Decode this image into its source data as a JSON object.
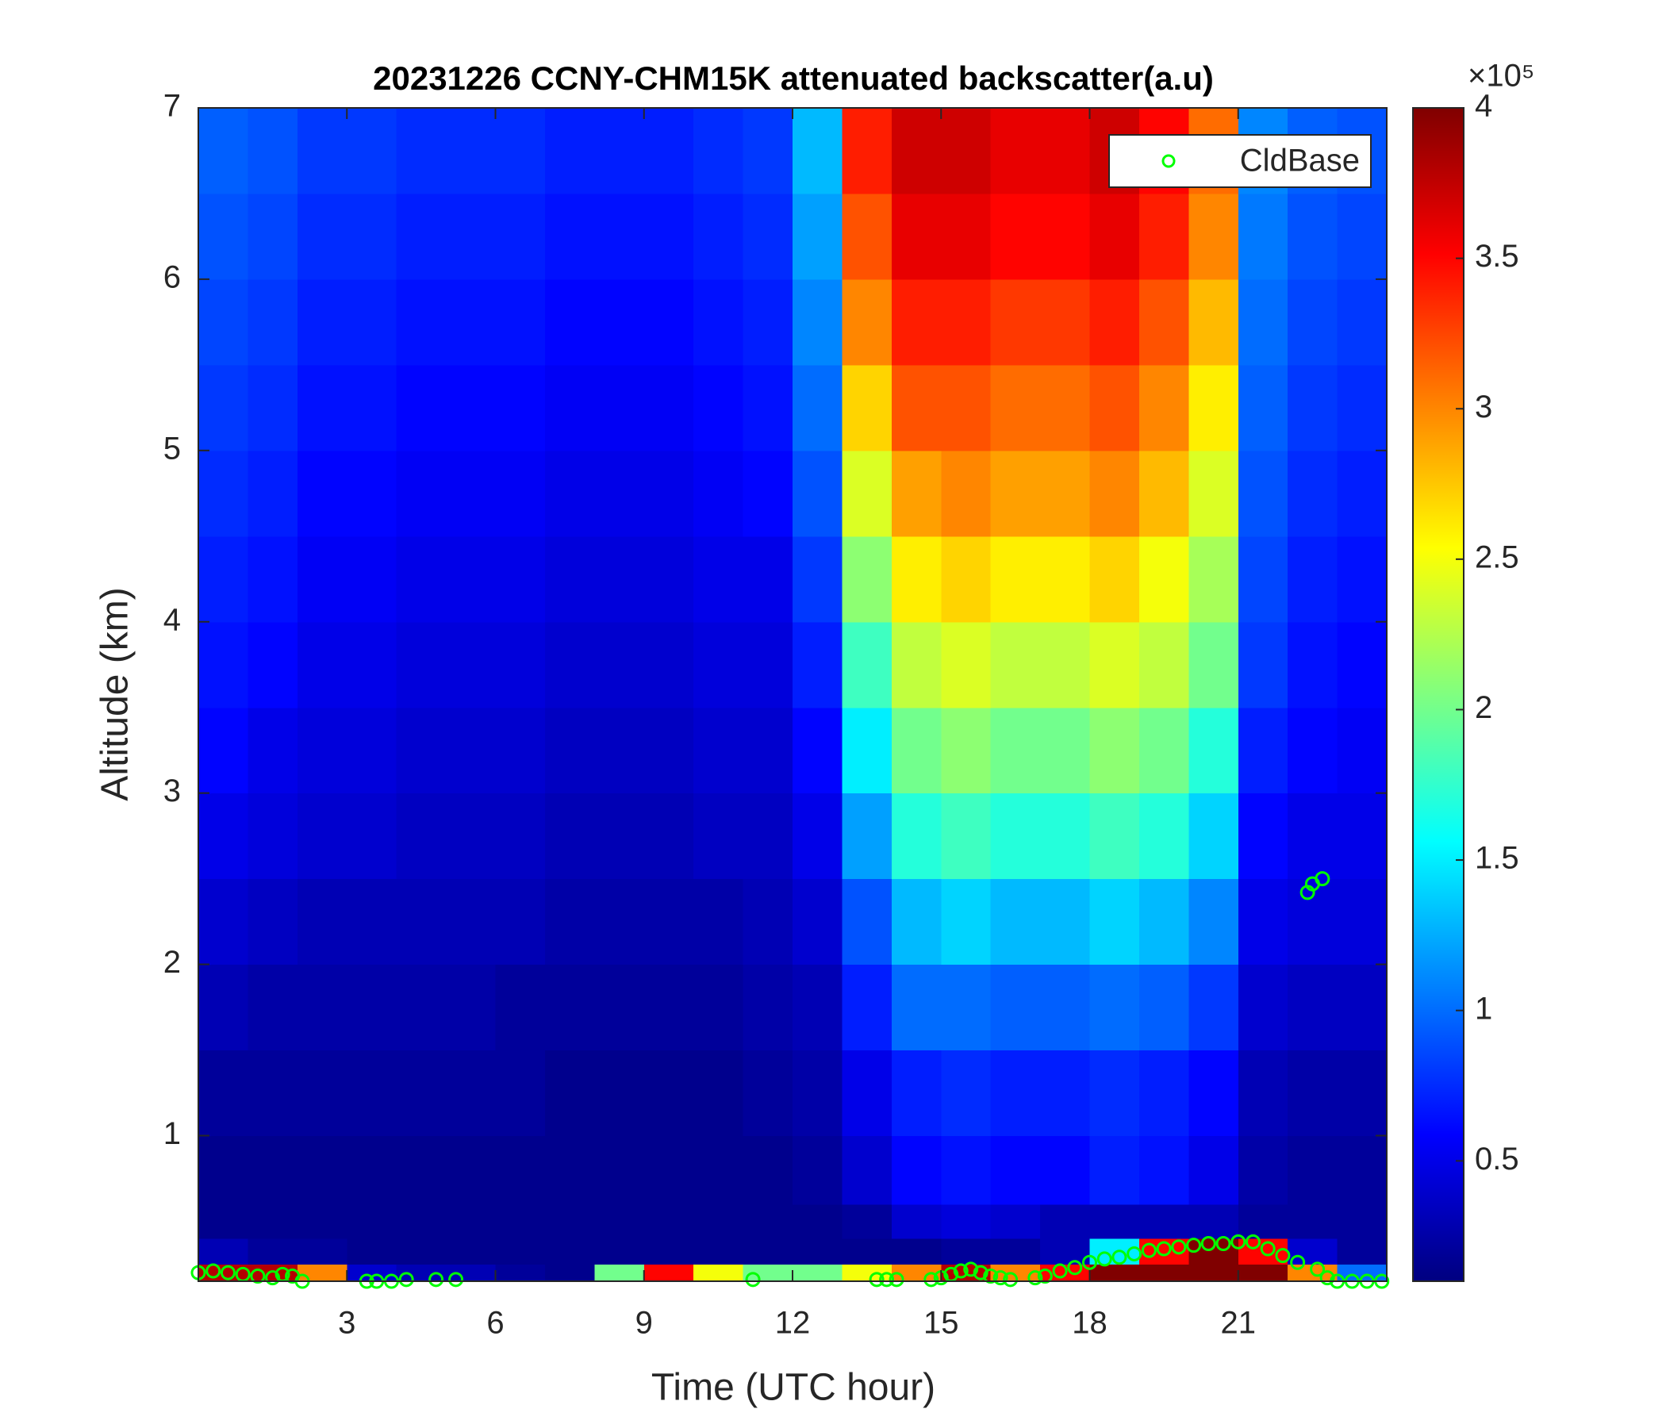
{
  "chart_data": {
    "type": "heatmap",
    "title": "20231226 CCNY-CHM15K attenuated backscatter(a.u)",
    "x_label": "Time (UTC hour)",
    "y_label": "Altitude (km)",
    "xlim": [
      0,
      24
    ],
    "xticks": [
      3,
      6,
      9,
      12,
      15,
      18,
      21
    ],
    "ylim": [
      0.15,
      7
    ],
    "yticks": [
      1,
      2,
      3,
      4,
      5,
      6,
      7
    ],
    "colormap": "jet",
    "clim": [
      0.1,
      4
    ],
    "colorbar_ticks": [
      0.5,
      1,
      1.5,
      2,
      2.5,
      3,
      3.5,
      4
    ],
    "colorbar_multiplier": "×10⁵",
    "x_edges": [
      0,
      1,
      2,
      3,
      4,
      5,
      6,
      7,
      8,
      9,
      10,
      11,
      12,
      13,
      14,
      15,
      16,
      17,
      18,
      19,
      20,
      21,
      22,
      23,
      24
    ],
    "y_edges": [
      0.15,
      0.25,
      0.4,
      0.6,
      1,
      1.5,
      2,
      2.5,
      3,
      3.5,
      4,
      4.5,
      5,
      5.5,
      6,
      6.5,
      7
    ],
    "z": [
      [
        3.8,
        3.8,
        3.0,
        0.4,
        0.3,
        0.3,
        0.2,
        0.15,
        2.0,
        3.5,
        2.5,
        2.0,
        2.0,
        2.5,
        3.0,
        3.8,
        3.0,
        3.5,
        4,
        4,
        4,
        4,
        3.0,
        1.0
      ],
      [
        0.3,
        0.2,
        0.2,
        0.15,
        0.15,
        0.15,
        0.15,
        0.15,
        0.15,
        0.15,
        0.15,
        0.15,
        0.15,
        0.15,
        0.15,
        0.2,
        0.2,
        0.3,
        1.5,
        3.5,
        4,
        3.5,
        0.4,
        0.2
      ],
      [
        0.15,
        0.15,
        0.15,
        0.15,
        0.15,
        0.15,
        0.15,
        0.15,
        0.15,
        0.15,
        0.15,
        0.15,
        0.15,
        0.2,
        0.4,
        0.45,
        0.4,
        0.3,
        0.3,
        0.3,
        0.3,
        0.2,
        0.2,
        0.2
      ],
      [
        0.15,
        0.15,
        0.15,
        0.15,
        0.15,
        0.15,
        0.15,
        0.15,
        0.15,
        0.15,
        0.15,
        0.15,
        0.2,
        0.4,
        0.6,
        0.65,
        0.6,
        0.6,
        0.7,
        0.65,
        0.5,
        0.25,
        0.2,
        0.2
      ],
      [
        0.2,
        0.2,
        0.2,
        0.2,
        0.2,
        0.2,
        0.2,
        0.15,
        0.15,
        0.15,
        0.15,
        0.2,
        0.25,
        0.5,
        0.7,
        0.75,
        0.7,
        0.7,
        0.75,
        0.7,
        0.6,
        0.3,
        0.25,
        0.25
      ],
      [
        0.3,
        0.25,
        0.25,
        0.25,
        0.25,
        0.25,
        0.2,
        0.2,
        0.2,
        0.2,
        0.2,
        0.25,
        0.3,
        0.7,
        1.0,
        1.0,
        0.95,
        0.95,
        1.0,
        0.95,
        0.8,
        0.4,
        0.35,
        0.35
      ],
      [
        0.4,
        0.35,
        0.3,
        0.3,
        0.3,
        0.3,
        0.3,
        0.25,
        0.25,
        0.25,
        0.25,
        0.3,
        0.4,
        0.9,
        1.3,
        1.4,
        1.3,
        1.3,
        1.4,
        1.3,
        1.1,
        0.5,
        0.45,
        0.45
      ],
      [
        0.5,
        0.45,
        0.4,
        0.4,
        0.35,
        0.35,
        0.35,
        0.3,
        0.3,
        0.3,
        0.35,
        0.35,
        0.5,
        1.2,
        1.7,
        1.8,
        1.7,
        1.7,
        1.8,
        1.7,
        1.4,
        0.6,
        0.5,
        0.5
      ],
      [
        0.6,
        0.5,
        0.45,
        0.45,
        0.4,
        0.4,
        0.4,
        0.35,
        0.35,
        0.35,
        0.4,
        0.4,
        0.6,
        1.5,
        2.0,
        2.1,
        2.0,
        2.0,
        2.1,
        2.0,
        1.7,
        0.7,
        0.6,
        0.55
      ],
      [
        0.65,
        0.6,
        0.5,
        0.5,
        0.45,
        0.45,
        0.45,
        0.4,
        0.4,
        0.4,
        0.45,
        0.45,
        0.7,
        1.8,
        2.3,
        2.4,
        2.3,
        2.3,
        2.4,
        2.3,
        2.0,
        0.8,
        0.65,
        0.6
      ],
      [
        0.7,
        0.65,
        0.55,
        0.55,
        0.5,
        0.5,
        0.5,
        0.45,
        0.45,
        0.45,
        0.5,
        0.5,
        0.8,
        2.1,
        2.6,
        2.7,
        2.6,
        2.6,
        2.7,
        2.5,
        2.2,
        0.85,
        0.7,
        0.65
      ],
      [
        0.75,
        0.7,
        0.6,
        0.6,
        0.55,
        0.55,
        0.55,
        0.5,
        0.5,
        0.5,
        0.55,
        0.6,
        0.9,
        2.4,
        2.9,
        3.0,
        2.9,
        2.9,
        3.0,
        2.8,
        2.4,
        0.9,
        0.75,
        0.7
      ],
      [
        0.8,
        0.75,
        0.65,
        0.65,
        0.6,
        0.6,
        0.6,
        0.55,
        0.55,
        0.55,
        0.6,
        0.65,
        1.0,
        2.7,
        3.2,
        3.2,
        3.1,
        3.1,
        3.2,
        3.0,
        2.6,
        0.95,
        0.8,
        0.75
      ],
      [
        0.85,
        0.8,
        0.7,
        0.7,
        0.65,
        0.65,
        0.65,
        0.6,
        0.6,
        0.6,
        0.65,
        0.7,
        1.1,
        3.0,
        3.4,
        3.4,
        3.3,
        3.3,
        3.4,
        3.2,
        2.8,
        1.0,
        0.85,
        0.8
      ],
      [
        0.9,
        0.85,
        0.75,
        0.75,
        0.7,
        0.7,
        0.7,
        0.65,
        0.65,
        0.65,
        0.7,
        0.75,
        1.2,
        3.2,
        3.6,
        3.6,
        3.5,
        3.5,
        3.6,
        3.4,
        3.0,
        1.05,
        0.9,
        0.85
      ],
      [
        0.95,
        0.9,
        0.8,
        0.8,
        0.75,
        0.75,
        0.75,
        0.7,
        0.7,
        0.7,
        0.75,
        0.8,
        1.3,
        3.4,
        3.7,
        3.7,
        3.6,
        3.6,
        3.7,
        3.5,
        3.1,
        1.1,
        0.95,
        0.9
      ]
    ],
    "legend_location": "northeast",
    "series": [
      {
        "name": "CldBase",
        "type": "scatter",
        "color": "#00ff00",
        "x": [
          0.0,
          0.3,
          0.6,
          0.9,
          1.2,
          1.5,
          1.7,
          1.9,
          2.1,
          3.4,
          3.6,
          3.9,
          4.2,
          4.8,
          5.2,
          11.2,
          13.7,
          13.9,
          14.1,
          14.8,
          15.0,
          15.2,
          15.4,
          15.6,
          15.8,
          16.0,
          16.2,
          16.4,
          16.9,
          17.1,
          17.4,
          17.7,
          18.0,
          18.3,
          18.6,
          18.9,
          19.2,
          19.5,
          19.8,
          20.1,
          20.4,
          20.7,
          21.0,
          21.3,
          21.6,
          21.9,
          22.2,
          22.4,
          22.5,
          22.6,
          22.7,
          22.8,
          23.0,
          23.3,
          23.6,
          23.9
        ],
        "values": [
          0.2,
          0.21,
          0.2,
          0.19,
          0.18,
          0.17,
          0.19,
          0.18,
          0.15,
          0.15,
          0.15,
          0.15,
          0.16,
          0.16,
          0.16,
          0.16,
          0.16,
          0.16,
          0.16,
          0.16,
          0.17,
          0.19,
          0.21,
          0.22,
          0.2,
          0.18,
          0.17,
          0.16,
          0.17,
          0.18,
          0.21,
          0.23,
          0.26,
          0.28,
          0.29,
          0.31,
          0.33,
          0.34,
          0.35,
          0.36,
          0.37,
          0.37,
          0.38,
          0.38,
          0.34,
          0.3,
          0.26,
          2.42,
          2.47,
          0.22,
          2.5,
          0.17,
          0.15,
          0.15,
          0.15,
          0.15
        ]
      }
    ]
  }
}
